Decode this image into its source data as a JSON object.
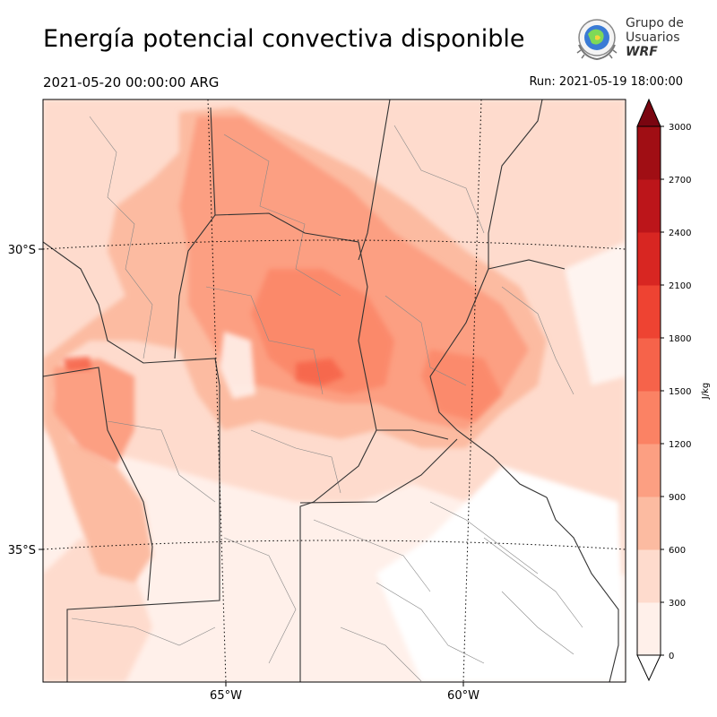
{
  "header": {
    "title": "Energía potencial convectiva disponible",
    "valid_time": "2021-05-20 00:00:00 ARG",
    "run_time": "Run: 2021-05-19 18:00:00"
  },
  "logo": {
    "line1": "Grupo de",
    "line2": "Usuarios",
    "line3": "WRF"
  },
  "map": {
    "lat_labels": [
      "30°S",
      "35°S"
    ],
    "lon_labels": [
      "65°W",
      "60°W"
    ]
  },
  "colorbar": {
    "unit": "J/kg",
    "ticks": [
      "0",
      "300",
      "600",
      "900",
      "1200",
      "1500",
      "1800",
      "2100",
      "2400",
      "2700",
      "3000"
    ],
    "colors": [
      "#fff0ea",
      "#fedbcd",
      "#fcbba1",
      "#fc9f82",
      "#fb8264",
      "#f6634a",
      "#ee4332",
      "#d82622",
      "#bc151a",
      "#a00e14",
      "#7a0510"
    ],
    "extend_color": "#7a0510",
    "min": 0,
    "max": 3000
  }
}
